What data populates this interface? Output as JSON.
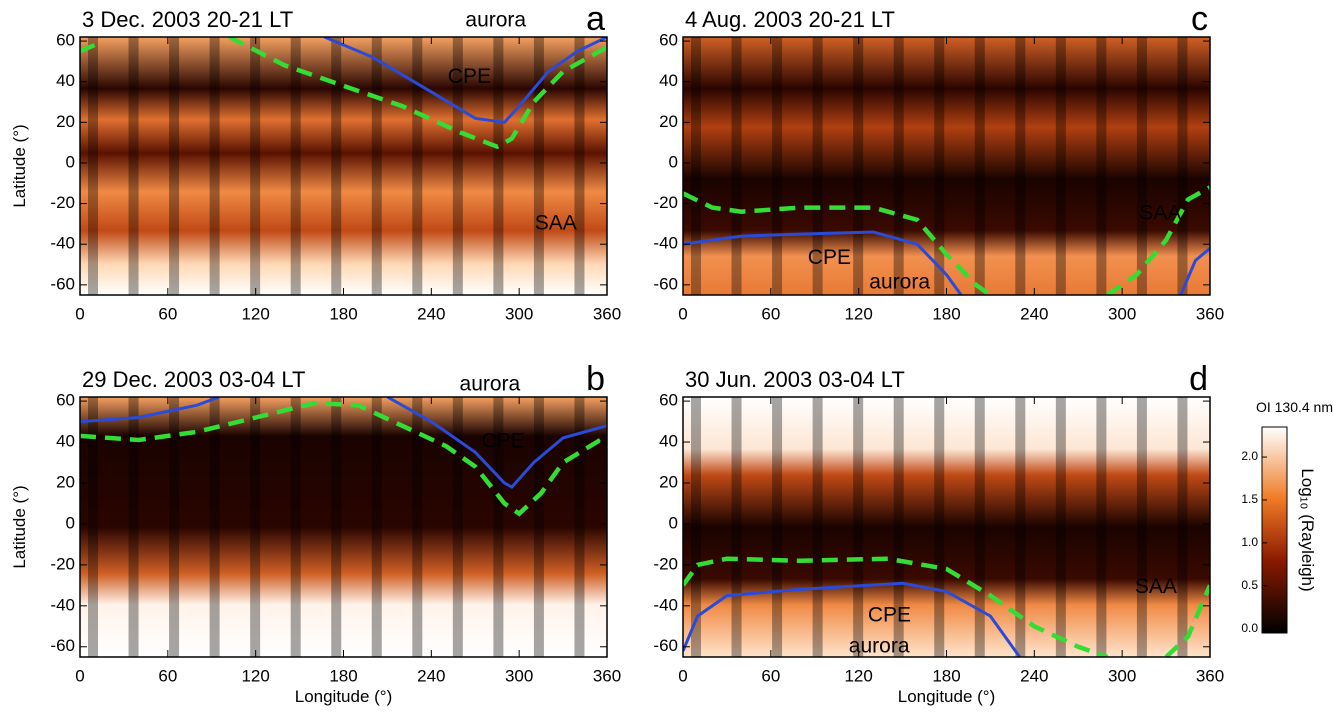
{
  "chart_data": [
    {
      "type": "line",
      "panel": "a",
      "title": "3 Dec. 2003  20-21 LT",
      "ylabel": "Latitude (°)",
      "xlim": [
        0,
        360
      ],
      "ylim": [
        -65,
        62
      ],
      "xticks": [
        0,
        60,
        120,
        180,
        240,
        300,
        360
      ],
      "yticks": [
        -60,
        -40,
        -20,
        0,
        20,
        40,
        60
      ],
      "annotations": [
        "aurora",
        "CPE",
        "SAA"
      ],
      "series": [
        {
          "color": "#2a4bd7",
          "style": "solid",
          "x": [
            167,
            200,
            240,
            270,
            290,
            300,
            320,
            340,
            360
          ],
          "values": [
            62,
            52,
            35,
            22,
            20,
            28,
            45,
            55,
            62
          ]
        },
        {
          "color": "#33dd33",
          "style": "dashed",
          "x": [
            0,
            10,
            20,
            102,
            140,
            180,
            220,
            260,
            285,
            295,
            310,
            330,
            360
          ],
          "values": [
            55,
            58,
            null,
            62,
            48,
            38,
            28,
            15,
            8,
            12,
            30,
            45,
            57
          ]
        }
      ]
    },
    {
      "type": "line",
      "panel": "c",
      "title": "4 Aug. 2003  20-21 LT",
      "xlim": [
        0,
        360
      ],
      "ylim": [
        -65,
        62
      ],
      "xticks": [
        0,
        60,
        120,
        180,
        240,
        300,
        360
      ],
      "yticks": [
        -60,
        -40,
        -20,
        0,
        20,
        40,
        60
      ],
      "annotations": [
        "SAA",
        "CPE",
        "aurora"
      ],
      "series": [
        {
          "color": "#2a4bd7",
          "style": "solid",
          "x": [
            0,
            40,
            80,
            130,
            160,
            180,
            190,
            260,
            340,
            350,
            360
          ],
          "values": [
            -40,
            -36,
            -35,
            -34,
            -40,
            -55,
            -65,
            null,
            -65,
            -48,
            -42
          ]
        },
        {
          "color": "#33dd33",
          "style": "dashed",
          "x": [
            0,
            20,
            40,
            80,
            130,
            160,
            180,
            200,
            210,
            250,
            290,
            310,
            330,
            345,
            360
          ],
          "values": [
            -15,
            -22,
            -24,
            -22,
            -22,
            -28,
            -45,
            -60,
            -65,
            null,
            -65,
            -55,
            -38,
            -18,
            -12
          ]
        }
      ]
    },
    {
      "type": "line",
      "panel": "b",
      "title": "29 Dec. 2003  03-04 LT",
      "ylabel": "Latitude (°)",
      "xlabel": "Longitude (°)",
      "xlim": [
        0,
        360
      ],
      "ylim": [
        -65,
        62
      ],
      "xticks": [
        0,
        60,
        120,
        180,
        240,
        300,
        360
      ],
      "yticks": [
        -60,
        -40,
        -20,
        0,
        20,
        40,
        60
      ],
      "annotations": [
        "aurora",
        "CPE"
      ],
      "series": [
        {
          "color": "#2a4bd7",
          "style": "solid",
          "x": [
            0,
            40,
            80,
            95,
            150,
            210,
            240,
            270,
            290,
            295,
            310,
            330,
            360
          ],
          "values": [
            50,
            52,
            58,
            62,
            null,
            62,
            50,
            35,
            20,
            18,
            30,
            42,
            48
          ]
        },
        {
          "color": "#33dd33",
          "style": "dashed",
          "x": [
            0,
            40,
            80,
            120,
            160,
            190,
            220,
            250,
            270,
            290,
            300,
            315,
            330,
            360
          ],
          "values": [
            43,
            41,
            45,
            52,
            59,
            58,
            48,
            38,
            28,
            10,
            5,
            15,
            30,
            43
          ]
        }
      ]
    },
    {
      "type": "line",
      "panel": "d",
      "title": "30 Jun. 2003  03-04 LT",
      "xlabel": "Longitude (°)",
      "xlim": [
        0,
        360
      ],
      "ylim": [
        -65,
        62
      ],
      "xticks": [
        0,
        60,
        120,
        180,
        240,
        300,
        360
      ],
      "yticks": [
        -60,
        -40,
        -20,
        0,
        20,
        40,
        60
      ],
      "annotations": [
        "SAA",
        "CPE",
        "aurora"
      ],
      "colorbar": {
        "title": "OI 130.4 nm",
        "label": "Log₁₀ (Rayleigh)",
        "clim": [
          -0.05,
          2.35
        ],
        "ticks": [
          {
            "value": 0,
            "label": "0.0"
          },
          {
            "value": 0.5,
            "label": "0.5"
          },
          {
            "value": 1,
            "label": "1.0"
          },
          {
            "value": 1.5,
            "label": "1.5"
          },
          {
            "value": 2,
            "label": "2.0"
          }
        ]
      },
      "series": [
        {
          "color": "#2a4bd7",
          "style": "solid",
          "x": [
            0,
            10,
            30,
            80,
            150,
            180,
            210,
            230
          ],
          "values": [
            -62,
            -45,
            -35,
            -32,
            -29,
            -33,
            -45,
            -65
          ]
        },
        {
          "color": "#33dd33",
          "style": "dashed",
          "x": [
            0,
            10,
            30,
            80,
            140,
            180,
            210,
            240,
            270,
            290,
            310,
            330,
            345,
            360
          ],
          "values": [
            -30,
            -20,
            -17,
            -18,
            -17,
            -22,
            -35,
            -50,
            -60,
            -65,
            null,
            -65,
            -55,
            -30
          ]
        }
      ]
    }
  ]
}
